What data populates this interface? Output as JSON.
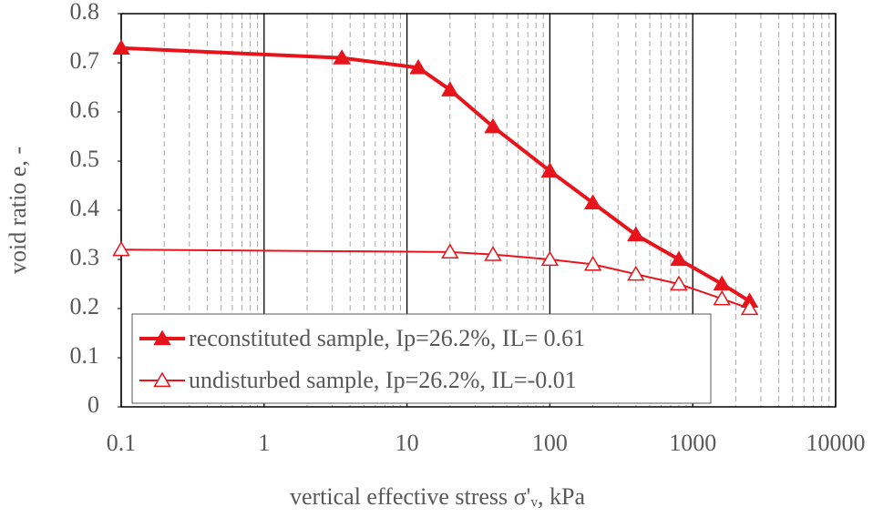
{
  "chart_data": {
    "type": "line",
    "x_label": "vertical effective stress σ'ᵥ, kPa",
    "y_label": "void ratio e, -",
    "x_scale": "log",
    "xlim": [
      0.1,
      10000
    ],
    "xticks": [
      0.1,
      1,
      10,
      100,
      1000,
      10000
    ],
    "ylim": [
      0,
      0.8
    ],
    "yticks": [
      0,
      0.1,
      0.2,
      0.3,
      0.4,
      0.5,
      0.6,
      0.7,
      0.8
    ],
    "grid": true,
    "legend": "lower left",
    "series": [
      {
        "name": "reconstituted sample, Ip=26.2%, IL= 0.61",
        "color": "#e8141b",
        "marker": "filled",
        "x": [
          0.1,
          3.5,
          12,
          20,
          40,
          100,
          200,
          400,
          800,
          1600,
          2500
        ],
        "values": [
          0.73,
          0.71,
          0.69,
          0.645,
          0.57,
          0.48,
          0.415,
          0.35,
          0.3,
          0.25,
          0.215
        ]
      },
      {
        "name": "undisturbed sample, Ip=26.2%, IL=-0.01",
        "color": "#e8141b",
        "marker": "hollow",
        "x": [
          0.1,
          20,
          40,
          100,
          200,
          400,
          800,
          1600,
          2500
        ],
        "values": [
          0.32,
          0.315,
          0.31,
          0.3,
          0.29,
          0.27,
          0.25,
          0.22,
          0.2
        ]
      }
    ]
  }
}
